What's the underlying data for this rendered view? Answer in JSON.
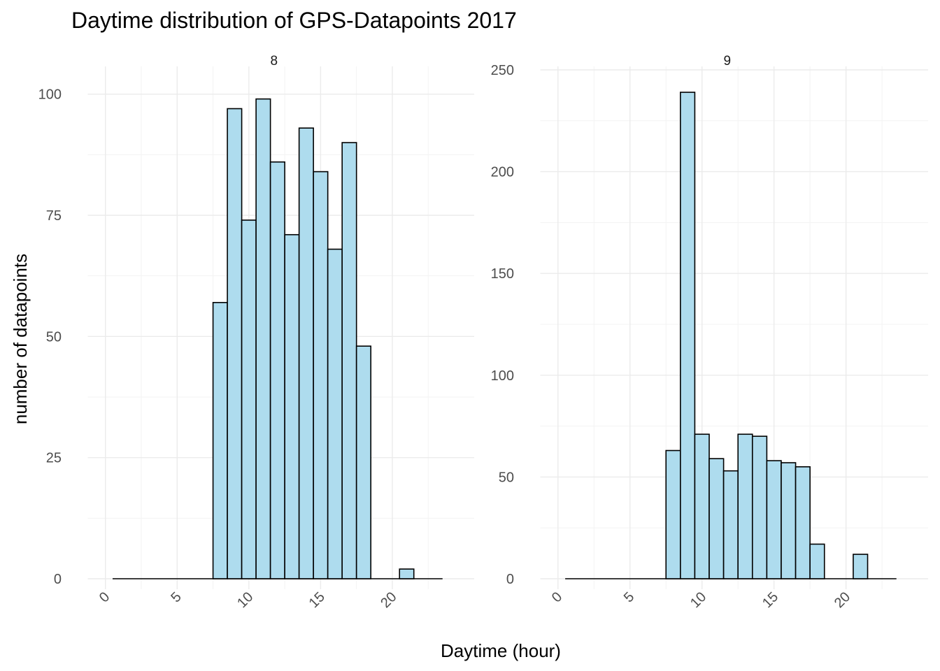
{
  "title": "Daytime distribution of GPS-Datapoints 2017",
  "xlabel": "Daytime (hour)",
  "ylabel": "number of datapoints",
  "colors": {
    "bar_fill": "#aedcee",
    "bar_stroke": "#000000"
  },
  "chart_data": {
    "type": "bar",
    "subtype": "faceted-histogram",
    "title": "Daytime distribution of GPS-Datapoints 2017",
    "xlabel": "Daytime (hour)",
    "ylabel": "number of datapoints",
    "bin_width": 1,
    "grid": true,
    "x_tick_labels": [
      "0",
      "5",
      "10",
      "15",
      "20"
    ],
    "x_ticks": [
      0,
      5,
      10,
      15,
      20
    ],
    "xlim": [
      -0.5,
      24
    ],
    "panels": [
      {
        "strip": "8",
        "ylim": [
          0,
          105
        ],
        "y_ticks": [
          0,
          25,
          50,
          75,
          100
        ],
        "y_tick_labels": [
          "0",
          "25",
          "50",
          "75",
          "100"
        ],
        "bins_from": 1,
        "bins_to": 23,
        "bins": [
          {
            "x": 8,
            "y": 57
          },
          {
            "x": 9,
            "y": 97
          },
          {
            "x": 10,
            "y": 74
          },
          {
            "x": 11,
            "y": 99
          },
          {
            "x": 12,
            "y": 86
          },
          {
            "x": 13,
            "y": 71
          },
          {
            "x": 14,
            "y": 93
          },
          {
            "x": 15,
            "y": 84
          },
          {
            "x": 16,
            "y": 68
          },
          {
            "x": 17,
            "y": 90
          },
          {
            "x": 18,
            "y": 48
          },
          {
            "x": 21,
            "y": 2
          }
        ]
      },
      {
        "strip": "9",
        "ylim": [
          0,
          250
        ],
        "y_ticks": [
          0,
          50,
          100,
          150,
          200,
          250
        ],
        "y_tick_labels": [
          "0",
          "50",
          "100",
          "150",
          "200",
          "250"
        ],
        "bins_from": 1,
        "bins_to": 23,
        "bins": [
          {
            "x": 8,
            "y": 63
          },
          {
            "x": 9,
            "y": 239
          },
          {
            "x": 10,
            "y": 71
          },
          {
            "x": 11,
            "y": 59
          },
          {
            "x": 12,
            "y": 53
          },
          {
            "x": 13,
            "y": 71
          },
          {
            "x": 14,
            "y": 70
          },
          {
            "x": 15,
            "y": 58
          },
          {
            "x": 16,
            "y": 57
          },
          {
            "x": 17,
            "y": 55
          },
          {
            "x": 18,
            "y": 17
          },
          {
            "x": 21,
            "y": 12
          }
        ]
      }
    ]
  }
}
